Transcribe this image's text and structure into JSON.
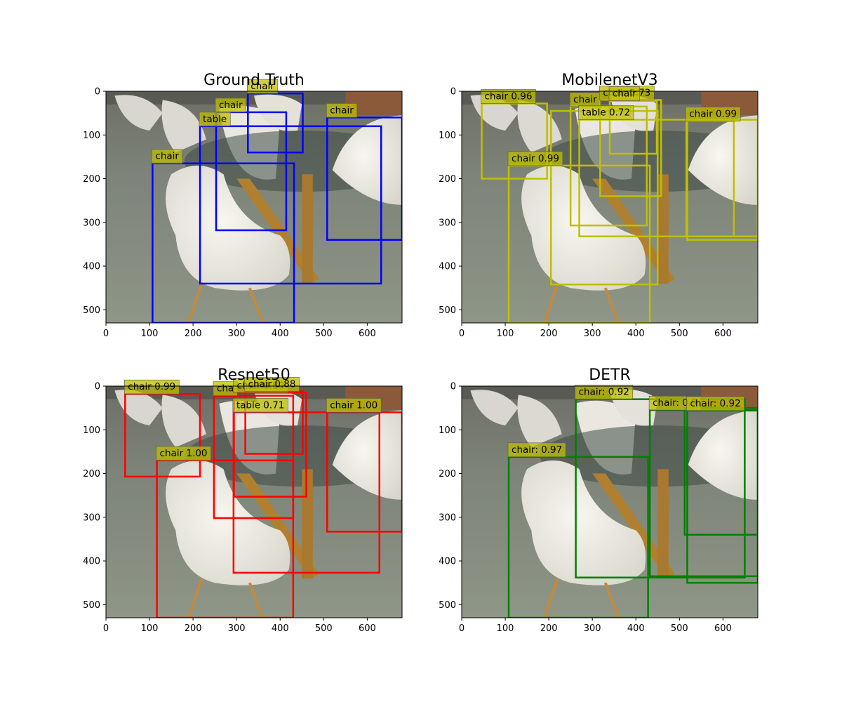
{
  "figure": {
    "panels": [
      {
        "title": "Ground Truth",
        "color": "#0000ff",
        "label_bg": "#bfbf00"
      },
      {
        "title": "MobilenetV3",
        "color": "#bfbf00",
        "label_bg": "#bfbf00"
      },
      {
        "title": "Resnet50",
        "color": "#ff0000",
        "label_bg": "#bfbf00"
      },
      {
        "title": "DETR",
        "color": "#008000",
        "label_bg": "#bfbf00"
      }
    ]
  },
  "chart_data": [
    {
      "type": "scatter",
      "title": "Ground Truth",
      "image": "indoor photo: white molded chairs around a round glass table",
      "xlim": [
        0,
        680
      ],
      "ylim": [
        530,
        0
      ],
      "xticks": [
        0,
        100,
        200,
        300,
        400,
        500,
        600
      ],
      "yticks": [
        0,
        100,
        200,
        300,
        400,
        500
      ],
      "grid": false,
      "boxes": [
        {
          "label": "chair",
          "x0": 107,
          "y0": 165,
          "x1": 432,
          "y1": 530
        },
        {
          "label": "table",
          "x0": 216,
          "y0": 80,
          "x1": 632,
          "y1": 440
        },
        {
          "label": "chair",
          "x0": 253,
          "y0": 48,
          "x1": 414,
          "y1": 318
        },
        {
          "label": "chair",
          "x0": 326,
          "y0": 5,
          "x1": 452,
          "y1": 140
        },
        {
          "label": "chair",
          "x0": 508,
          "y0": 60,
          "x1": 680,
          "y1": 340
        }
      ]
    },
    {
      "type": "scatter",
      "title": "MobilenetV3",
      "xlim": [
        0,
        680
      ],
      "ylim": [
        530,
        0
      ],
      "xticks": [
        0,
        100,
        200,
        300,
        400,
        500,
        600
      ],
      "yticks": [
        0,
        100,
        200,
        300,
        400,
        500
      ],
      "grid": false,
      "boxes": [
        {
          "label": "chair 0.96",
          "x0": 46,
          "y0": 28,
          "x1": 196,
          "y1": 200
        },
        {
          "label": "chair 0.99",
          "x0": 108,
          "y0": 170,
          "x1": 432,
          "y1": 530
        },
        {
          "label": "chair 0.99",
          "x0": 516,
          "y0": 68,
          "x1": 625,
          "y1": 332
        },
        {
          "label": "chair",
          "x0": 250,
          "y0": 35,
          "x1": 425,
          "y1": 307
        },
        {
          "label": "chair 0.73",
          "x0": 318,
          "y0": 20,
          "x1": 458,
          "y1": 240
        },
        {
          "label": "chair",
          "x0": 340,
          "y0": 22,
          "x1": 448,
          "y1": 143
        },
        {
          "label": "table 0.72",
          "x0": 270,
          "y0": 65,
          "x1": 680,
          "y1": 332
        },
        {
          "label": "",
          "x0": 205,
          "y0": 45,
          "x1": 450,
          "y1": 442
        },
        {
          "label": "",
          "x0": 518,
          "y0": 65,
          "x1": 680,
          "y1": 340
        }
      ]
    },
    {
      "type": "scatter",
      "title": "Resnet50",
      "xlim": [
        0,
        680
      ],
      "ylim": [
        530,
        0
      ],
      "xticks": [
        0,
        100,
        200,
        300,
        400,
        500,
        600
      ],
      "yticks": [
        0,
        100,
        200,
        300,
        400,
        500
      ],
      "grid": false,
      "boxes": [
        {
          "label": "chair 0.99",
          "x0": 44,
          "y0": 18,
          "x1": 216,
          "y1": 207
        },
        {
          "label": "chair 1.00",
          "x0": 117,
          "y0": 170,
          "x1": 430,
          "y1": 530
        },
        {
          "label": "chair 1.00",
          "x0": 508,
          "y0": 60,
          "x1": 680,
          "y1": 333
        },
        {
          "label": "cha",
          "x0": 248,
          "y0": 22,
          "x1": 430,
          "y1": 302
        },
        {
          "label": "chair 0.80",
          "x0": 294,
          "y0": 15,
          "x1": 460,
          "y1": 253
        },
        {
          "label": "chair 0.88",
          "x0": 320,
          "y0": 12,
          "x1": 452,
          "y1": 155
        },
        {
          "label": "table 0.71",
          "x0": 293,
          "y0": 60,
          "x1": 628,
          "y1": 427
        }
      ]
    },
    {
      "type": "scatter",
      "title": "DETR",
      "xlim": [
        0,
        680
      ],
      "ylim": [
        530,
        0
      ],
      "xticks": [
        0,
        100,
        200,
        300,
        400,
        500,
        600
      ],
      "yticks": [
        0,
        100,
        200,
        300,
        400,
        500
      ],
      "grid": false,
      "boxes": [
        {
          "label": "chair: 0.97",
          "x0": 108,
          "y0": 162,
          "x1": 428,
          "y1": 530
        },
        {
          "label": "chair: 0.92",
          "x0": 262,
          "y0": 30,
          "x1": 650,
          "y1": 438
        },
        {
          "label": "chair: 0.9",
          "x0": 432,
          "y0": 55,
          "x1": 680,
          "y1": 435
        },
        {
          "label": "chair: 0.92",
          "x0": 518,
          "y0": 56,
          "x1": 680,
          "y1": 450
        },
        {
          "label": "",
          "x0": 512,
          "y0": 50,
          "x1": 680,
          "y1": 340
        }
      ]
    }
  ]
}
